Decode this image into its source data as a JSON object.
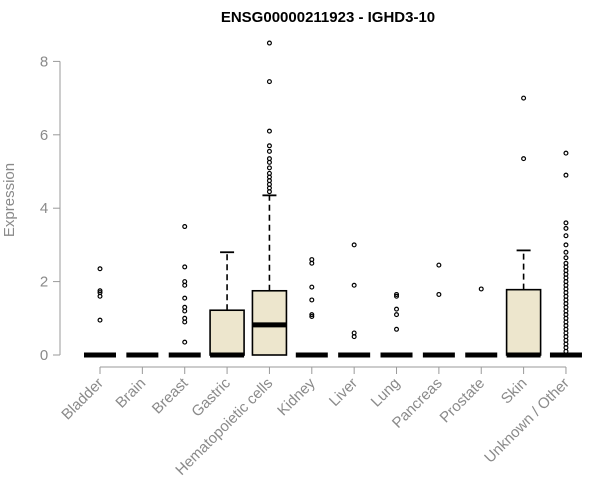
{
  "chart_data": {
    "type": "boxplot",
    "title": "ENSG00000211923 - IGHD3-10",
    "xlabel": "",
    "ylabel": "Expression",
    "ylim": [
      0,
      8.5
    ],
    "yticks": [
      0,
      2,
      4,
      6,
      8
    ],
    "grid": false,
    "colors": {
      "box_fill": "#ede6cd",
      "box_stroke": "#000000",
      "axis": "#9a9a9a",
      "text": "#8a8a8a",
      "title": "#000000"
    },
    "categories": [
      "Bladder",
      "Brain",
      "Breast",
      "Gastric",
      "Hematopoietic cells",
      "Kidney",
      "Liver",
      "Lung",
      "Pancreas",
      "Prostate",
      "Skin",
      "Unknown / Other"
    ],
    "boxes": [
      {
        "name": "Bladder",
        "q1": 0,
        "median": 0,
        "q3": 0,
        "whisker_low": 0,
        "whisker_high": 0,
        "outliers": [
          2.35,
          1.75,
          1.7,
          1.6,
          0.95
        ]
      },
      {
        "name": "Brain",
        "q1": 0,
        "median": 0,
        "q3": 0,
        "whisker_low": 0,
        "whisker_high": 0,
        "outliers": []
      },
      {
        "name": "Breast",
        "q1": 0,
        "median": 0,
        "q3": 0,
        "whisker_low": 0,
        "whisker_high": 0,
        "outliers": [
          3.5,
          2.4,
          2.0,
          1.9,
          1.55,
          1.3,
          1.2,
          1.0,
          0.9,
          0.35
        ]
      },
      {
        "name": "Gastric",
        "q1": 0,
        "median": 0,
        "q3": 1.22,
        "whisker_low": 0,
        "whisker_high": 2.8,
        "outliers": []
      },
      {
        "name": "Hematopoietic cells",
        "q1": 0,
        "median": 0.82,
        "q3": 1.75,
        "whisker_low": 0,
        "whisker_high": 4.35,
        "outliers": [
          8.5,
          7.45,
          6.1,
          5.7,
          5.55,
          5.35,
          5.25,
          5.1,
          4.95,
          4.85,
          4.75,
          4.65,
          4.55,
          4.45
        ]
      },
      {
        "name": "Kidney",
        "q1": 0,
        "median": 0,
        "q3": 0,
        "whisker_low": 0,
        "whisker_high": 0,
        "outliers": [
          2.6,
          2.5,
          1.85,
          1.5,
          1.1,
          1.05
        ]
      },
      {
        "name": "Liver",
        "q1": 0,
        "median": 0,
        "q3": 0,
        "whisker_low": 0,
        "whisker_high": 0,
        "outliers": [
          3.0,
          1.9,
          0.6,
          0.5
        ]
      },
      {
        "name": "Lung",
        "q1": 0,
        "median": 0,
        "q3": 0,
        "whisker_low": 0,
        "whisker_high": 0,
        "outliers": [
          1.65,
          1.6,
          1.25,
          1.1,
          0.7
        ]
      },
      {
        "name": "Pancreas",
        "q1": 0,
        "median": 0,
        "q3": 0,
        "whisker_low": 0,
        "whisker_high": 0,
        "outliers": [
          2.45,
          1.65
        ]
      },
      {
        "name": "Prostate",
        "q1": 0,
        "median": 0,
        "q3": 0,
        "whisker_low": 0,
        "whisker_high": 0,
        "outliers": [
          1.8
        ]
      },
      {
        "name": "Skin",
        "q1": 0,
        "median": 0,
        "q3": 1.78,
        "whisker_low": 0,
        "whisker_high": 2.85,
        "outliers": [
          7.0,
          5.35
        ]
      },
      {
        "name": "Unknown / Other",
        "q1": 0,
        "median": 0,
        "q3": 0,
        "whisker_low": 0,
        "whisker_high": 0,
        "outliers": [
          5.5,
          4.9,
          3.6,
          3.45,
          3.25,
          3.0,
          2.8,
          2.65,
          2.5,
          2.4,
          2.3,
          2.2,
          2.1,
          2.0,
          1.9,
          1.8,
          1.7,
          1.6,
          1.5,
          1.4,
          1.3,
          1.2,
          1.1,
          1.0,
          0.9,
          0.8,
          0.7,
          0.6,
          0.5,
          0.4,
          0.3,
          0.2,
          0.1
        ]
      }
    ]
  }
}
